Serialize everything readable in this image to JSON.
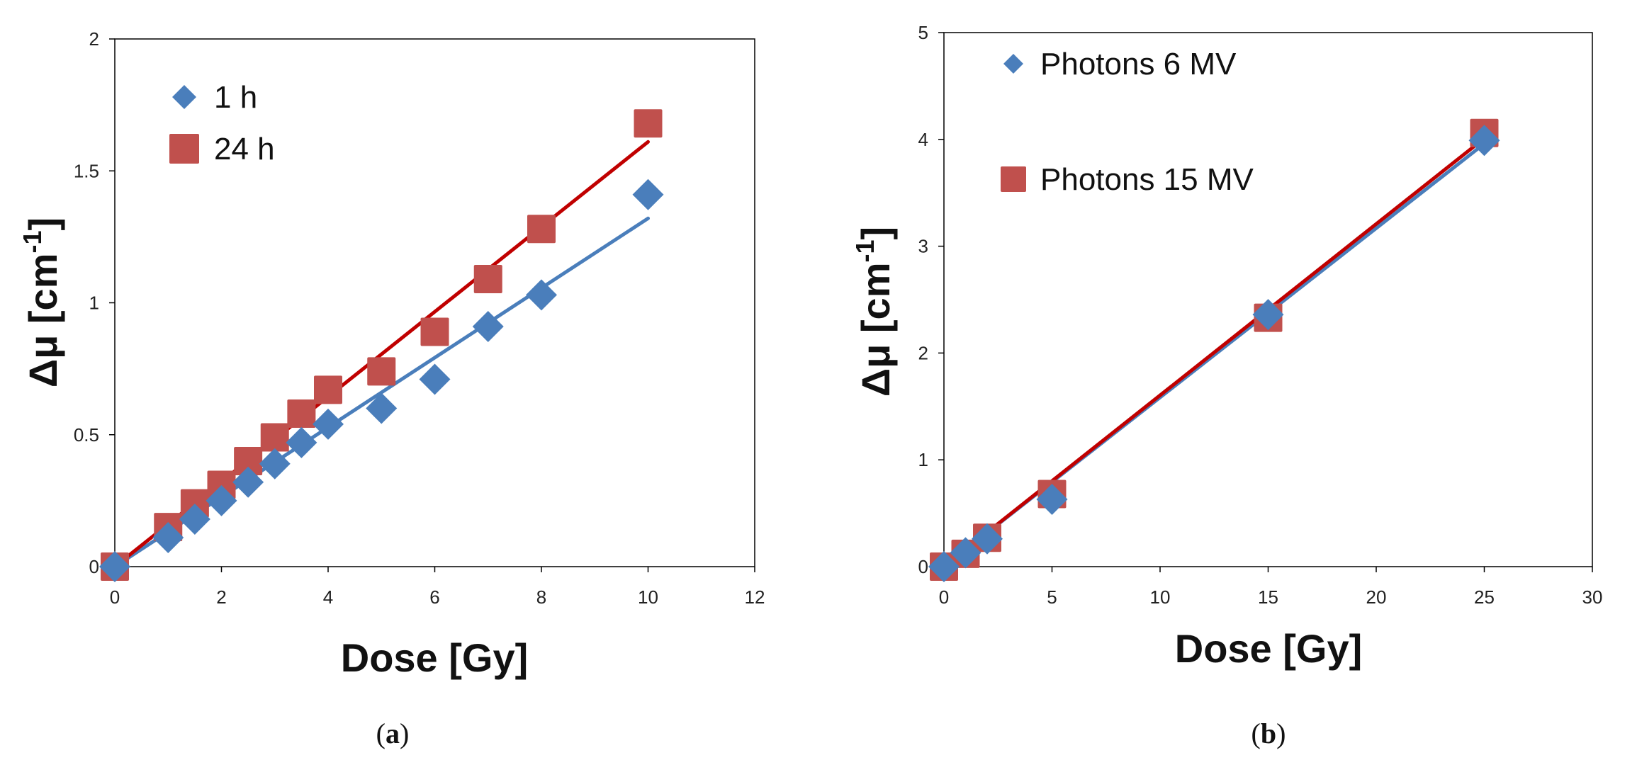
{
  "chart_data": [
    {
      "type": "scatter",
      "panel": "a",
      "caption": "(a)",
      "caption_letter": "a",
      "xlabel": "Dose [Gy]",
      "ylabel": "Δμ [cm",
      "ylabel_sup": "-1",
      "ylabel_end": "]",
      "xlim": [
        0,
        12
      ],
      "ylim": [
        0,
        2
      ],
      "xticks": [
        0,
        2,
        4,
        6,
        8,
        10,
        12
      ],
      "yticks": [
        0,
        0.5,
        1,
        1.5,
        2
      ],
      "xtick_labels": [
        "0",
        "2",
        "4",
        "6",
        "8",
        "10",
        "12"
      ],
      "ytick_labels": [
        "0",
        "0.5",
        "1",
        "1.5",
        "2"
      ],
      "legend_position": "top-left",
      "series": [
        {
          "name": "1 h",
          "marker": "diamond",
          "color": "#4a7ebb",
          "x": [
            0,
            1,
            1.5,
            2,
            2.5,
            3,
            3.5,
            4,
            5,
            6,
            7,
            8,
            10
          ],
          "y": [
            0,
            0.11,
            0.18,
            0.25,
            0.32,
            0.39,
            0.47,
            0.54,
            0.6,
            0.71,
            0.91,
            1.03,
            1.41
          ],
          "trendline": [
            [
              0,
              0
            ],
            [
              10,
              1.32
            ]
          ]
        },
        {
          "name": "24 h",
          "marker": "square",
          "color": "#c0504d",
          "line_color": "#c00000",
          "x": [
            0,
            1,
            1.5,
            2,
            2.5,
            3,
            3.5,
            4,
            5,
            6,
            7,
            8,
            10
          ],
          "y": [
            0,
            0.15,
            0.24,
            0.31,
            0.4,
            0.49,
            0.58,
            0.67,
            0.74,
            0.89,
            1.09,
            1.28,
            1.68
          ],
          "trendline": [
            [
              0,
              0
            ],
            [
              10,
              1.61
            ]
          ]
        }
      ]
    },
    {
      "type": "scatter",
      "panel": "b",
      "caption": "(b)",
      "caption_letter": "b",
      "xlabel": "Dose [Gy]",
      "ylabel": "Δμ [cm",
      "ylabel_sup": "-1",
      "ylabel_end": "]",
      "xlim": [
        0,
        30
      ],
      "ylim": [
        0,
        5
      ],
      "xticks": [
        0,
        5,
        10,
        15,
        20,
        25,
        30
      ],
      "yticks": [
        0,
        1,
        2,
        3,
        4,
        5
      ],
      "xtick_labels": [
        "0",
        "5",
        "10",
        "15",
        "20",
        "25",
        "30"
      ],
      "ytick_labels": [
        "0",
        "1",
        "2",
        "3",
        "4",
        "5"
      ],
      "legend_position": "top-left",
      "series": [
        {
          "name": "Photons 6 MV",
          "marker": "diamond",
          "color": "#4a7ebb",
          "x": [
            0,
            1,
            2,
            5,
            15,
            25
          ],
          "y": [
            0,
            0.13,
            0.26,
            0.63,
            2.36,
            3.99
          ],
          "trendline": [
            [
              0,
              0
            ],
            [
              25,
              3.96
            ]
          ]
        },
        {
          "name": "Photons 15 MV",
          "marker": "square",
          "color": "#c0504d",
          "line_color": "#c00000",
          "x": [
            0,
            1,
            2,
            5,
            15,
            25
          ],
          "y": [
            0,
            0.12,
            0.27,
            0.68,
            2.33,
            4.06
          ],
          "trendline": [
            [
              0,
              0
            ],
            [
              25,
              4.01
            ]
          ]
        }
      ]
    }
  ]
}
